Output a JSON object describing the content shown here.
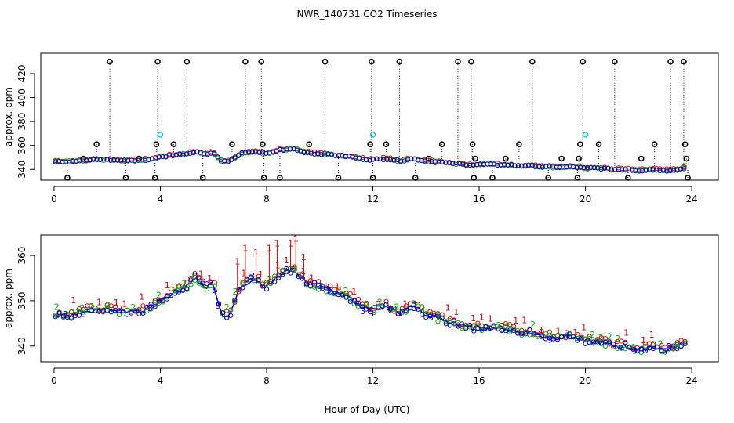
{
  "figure": {
    "title": "NWR_140731  CO2 Timeseries",
    "xlabel": "Hour of Day (UTC)"
  },
  "colors": {
    "series1": "#dd0000",
    "series2": "#00aa00",
    "series3": "#0000cc",
    "flagged": "#000000",
    "cyan": "#00cccc"
  },
  "chart_data": [
    {
      "type": "scatter",
      "panel": "top",
      "ylabel": "approx. ppm",
      "xlim": [
        -0.5,
        25
      ],
      "ylim": [
        331,
        437
      ],
      "xticks": [
        0,
        4,
        8,
        12,
        16,
        20,
        24
      ],
      "yticks": [
        340,
        360,
        380,
        400,
        420
      ],
      "baseline": [
        {
          "x": 0.0,
          "y": 347
        },
        {
          "x": 0.5,
          "y": 346.5
        },
        {
          "x": 1.0,
          "y": 347.5
        },
        {
          "x": 1.5,
          "y": 348
        },
        {
          "x": 2.0,
          "y": 348
        },
        {
          "x": 2.5,
          "y": 347.5
        },
        {
          "x": 3.0,
          "y": 347.5
        },
        {
          "x": 3.5,
          "y": 348
        },
        {
          "x": 4.0,
          "y": 350
        },
        {
          "x": 4.5,
          "y": 352
        },
        {
          "x": 5.0,
          "y": 353
        },
        {
          "x": 5.3,
          "y": 355
        },
        {
          "x": 5.7,
          "y": 353
        },
        {
          "x": 6.0,
          "y": 354
        },
        {
          "x": 6.3,
          "y": 347
        },
        {
          "x": 6.6,
          "y": 346.5
        },
        {
          "x": 7.0,
          "y": 353
        },
        {
          "x": 7.5,
          "y": 355
        },
        {
          "x": 8.0,
          "y": 353
        },
        {
          "x": 8.5,
          "y": 356
        },
        {
          "x": 9.0,
          "y": 357
        },
        {
          "x": 9.5,
          "y": 354
        },
        {
          "x": 10.0,
          "y": 353
        },
        {
          "x": 10.5,
          "y": 352
        },
        {
          "x": 11.0,
          "y": 351
        },
        {
          "x": 11.5,
          "y": 349
        },
        {
          "x": 12.0,
          "y": 348
        },
        {
          "x": 12.5,
          "y": 349
        },
        {
          "x": 13.0,
          "y": 347
        },
        {
          "x": 13.5,
          "y": 349
        },
        {
          "x": 14.0,
          "y": 347
        },
        {
          "x": 14.5,
          "y": 346
        },
        {
          "x": 15.0,
          "y": 345
        },
        {
          "x": 15.5,
          "y": 344
        },
        {
          "x": 16.0,
          "y": 344
        },
        {
          "x": 16.5,
          "y": 344
        },
        {
          "x": 17.0,
          "y": 344
        },
        {
          "x": 17.5,
          "y": 343
        },
        {
          "x": 18.0,
          "y": 343
        },
        {
          "x": 18.5,
          "y": 342
        },
        {
          "x": 19.0,
          "y": 342
        },
        {
          "x": 19.5,
          "y": 342
        },
        {
          "x": 20.0,
          "y": 341
        },
        {
          "x": 20.5,
          "y": 341
        },
        {
          "x": 21.0,
          "y": 340
        },
        {
          "x": 21.5,
          "y": 340
        },
        {
          "x": 22.0,
          "y": 339
        },
        {
          "x": 22.5,
          "y": 340
        },
        {
          "x": 23.0,
          "y": 339
        },
        {
          "x": 23.5,
          "y": 340
        },
        {
          "x": 23.75,
          "y": 341
        }
      ],
      "flagged": [
        {
          "x": 0.5,
          "y": 333
        },
        {
          "x": 1.1,
          "y": 349
        },
        {
          "x": 1.6,
          "y": 361
        },
        {
          "x": 2.1,
          "y": 430
        },
        {
          "x": 2.7,
          "y": 333
        },
        {
          "x": 3.2,
          "y": 349
        },
        {
          "x": 3.8,
          "y": 333
        },
        {
          "x": 3.85,
          "y": 361
        },
        {
          "x": 3.9,
          "y": 430
        },
        {
          "x": 4.5,
          "y": 361
        },
        {
          "x": 5.0,
          "y": 430
        },
        {
          "x": 5.6,
          "y": 333
        },
        {
          "x": 6.7,
          "y": 361
        },
        {
          "x": 7.2,
          "y": 430
        },
        {
          "x": 7.8,
          "y": 430
        },
        {
          "x": 7.85,
          "y": 361
        },
        {
          "x": 7.9,
          "y": 333
        },
        {
          "x": 8.5,
          "y": 333
        },
        {
          "x": 9.6,
          "y": 361
        },
        {
          "x": 10.2,
          "y": 430
        },
        {
          "x": 10.7,
          "y": 333
        },
        {
          "x": 11.9,
          "y": 361
        },
        {
          "x": 11.95,
          "y": 430
        },
        {
          "x": 12.0,
          "y": 333
        },
        {
          "x": 12.5,
          "y": 361
        },
        {
          "x": 13.0,
          "y": 430
        },
        {
          "x": 13.6,
          "y": 333
        },
        {
          "x": 14.1,
          "y": 349
        },
        {
          "x": 14.6,
          "y": 361
        },
        {
          "x": 15.2,
          "y": 430
        },
        {
          "x": 15.7,
          "y": 430
        },
        {
          "x": 15.75,
          "y": 361
        },
        {
          "x": 15.8,
          "y": 333
        },
        {
          "x": 15.85,
          "y": 349
        },
        {
          "x": 16.5,
          "y": 333
        },
        {
          "x": 17.0,
          "y": 349
        },
        {
          "x": 17.5,
          "y": 361
        },
        {
          "x": 18.0,
          "y": 430
        },
        {
          "x": 18.6,
          "y": 333
        },
        {
          "x": 19.1,
          "y": 349
        },
        {
          "x": 19.7,
          "y": 333
        },
        {
          "x": 19.75,
          "y": 349
        },
        {
          "x": 19.8,
          "y": 361
        },
        {
          "x": 19.9,
          "y": 430
        },
        {
          "x": 20.5,
          "y": 361
        },
        {
          "x": 21.1,
          "y": 430
        },
        {
          "x": 21.6,
          "y": 333
        },
        {
          "x": 22.1,
          "y": 349
        },
        {
          "x": 22.6,
          "y": 361
        },
        {
          "x": 23.2,
          "y": 430
        },
        {
          "x": 23.7,
          "y": 430
        },
        {
          "x": 23.75,
          "y": 361
        },
        {
          "x": 23.8,
          "y": 349
        },
        {
          "x": 23.85,
          "y": 333
        }
      ],
      "cyan_points": [
        {
          "x": 4.0,
          "y": 369
        },
        {
          "x": 12.0,
          "y": 369
        },
        {
          "x": 20.0,
          "y": 369
        }
      ]
    },
    {
      "type": "scatter",
      "panel": "bottom",
      "ylabel": "approx. ppm",
      "xlim": [
        -0.5,
        25
      ],
      "ylim": [
        336.5,
        364.5
      ],
      "xticks": [
        0,
        4,
        8,
        12,
        16,
        20,
        24
      ],
      "yticks": [
        340,
        350,
        360
      ],
      "series_labels": [
        "1",
        "2",
        "3"
      ],
      "baseline": [
        {
          "x": 0.0,
          "y": 347
        },
        {
          "x": 0.5,
          "y": 346.5
        },
        {
          "x": 1.0,
          "y": 347.5
        },
        {
          "x": 1.5,
          "y": 348
        },
        {
          "x": 2.0,
          "y": 348
        },
        {
          "x": 2.5,
          "y": 347.5
        },
        {
          "x": 3.0,
          "y": 347.5
        },
        {
          "x": 3.5,
          "y": 348
        },
        {
          "x": 4.0,
          "y": 350
        },
        {
          "x": 4.5,
          "y": 352
        },
        {
          "x": 5.0,
          "y": 353
        },
        {
          "x": 5.3,
          "y": 355
        },
        {
          "x": 5.7,
          "y": 353
        },
        {
          "x": 6.0,
          "y": 354
        },
        {
          "x": 6.3,
          "y": 347
        },
        {
          "x": 6.6,
          "y": 346.5
        },
        {
          "x": 7.0,
          "y": 353
        },
        {
          "x": 7.5,
          "y": 355
        },
        {
          "x": 8.0,
          "y": 353
        },
        {
          "x": 8.5,
          "y": 356
        },
        {
          "x": 9.0,
          "y": 357
        },
        {
          "x": 9.5,
          "y": 354
        },
        {
          "x": 10.0,
          "y": 353
        },
        {
          "x": 10.5,
          "y": 352
        },
        {
          "x": 11.0,
          "y": 351
        },
        {
          "x": 11.5,
          "y": 349
        },
        {
          "x": 12.0,
          "y": 348
        },
        {
          "x": 12.5,
          "y": 349
        },
        {
          "x": 13.0,
          "y": 347
        },
        {
          "x": 13.5,
          "y": 349
        },
        {
          "x": 14.0,
          "y": 347
        },
        {
          "x": 14.5,
          "y": 346
        },
        {
          "x": 15.0,
          "y": 345
        },
        {
          "x": 15.5,
          "y": 344
        },
        {
          "x": 16.0,
          "y": 344
        },
        {
          "x": 16.5,
          "y": 344
        },
        {
          "x": 17.0,
          "y": 344
        },
        {
          "x": 17.5,
          "y": 343
        },
        {
          "x": 18.0,
          "y": 343
        },
        {
          "x": 18.5,
          "y": 342
        },
        {
          "x": 19.0,
          "y": 342
        },
        {
          "x": 19.5,
          "y": 342
        },
        {
          "x": 20.0,
          "y": 341
        },
        {
          "x": 20.5,
          "y": 341
        },
        {
          "x": 21.0,
          "y": 340
        },
        {
          "x": 21.5,
          "y": 340
        },
        {
          "x": 22.0,
          "y": 339
        },
        {
          "x": 22.5,
          "y": 340
        },
        {
          "x": 23.0,
          "y": 339
        },
        {
          "x": 23.5,
          "y": 340
        },
        {
          "x": 23.75,
          "y": 341
        }
      ],
      "spikes": [
        {
          "x": 7.2,
          "y": 361
        },
        {
          "x": 7.6,
          "y": 360
        },
        {
          "x": 8.1,
          "y": 361
        },
        {
          "x": 8.4,
          "y": 362
        },
        {
          "x": 8.9,
          "y": 362
        },
        {
          "x": 9.1,
          "y": 363
        },
        {
          "x": 9.4,
          "y": 359
        },
        {
          "x": 6.9,
          "y": 358
        }
      ]
    }
  ]
}
